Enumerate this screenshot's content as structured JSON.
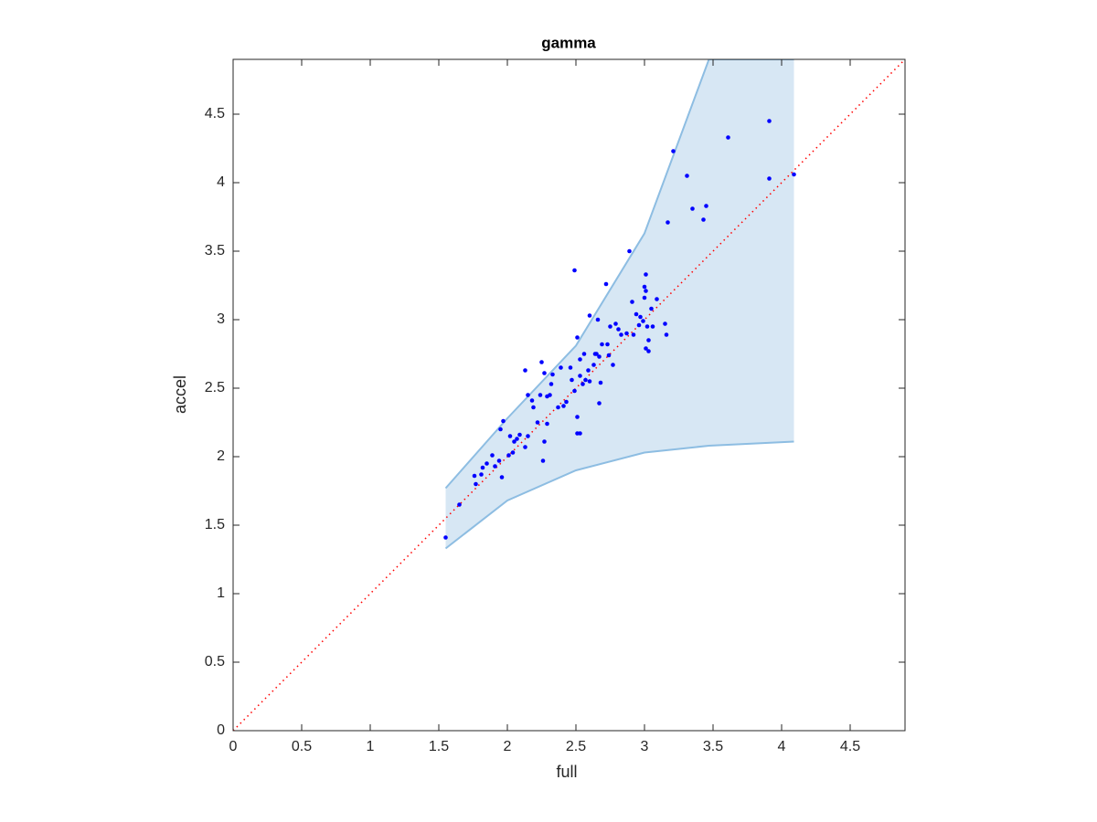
{
  "chart_data": {
    "type": "scatter",
    "title": "gamma",
    "xlabel": "full",
    "ylabel": "accel",
    "xlim": [
      0,
      4.9
    ],
    "ylim": [
      0,
      4.9
    ],
    "xticks": [
      0,
      0.5,
      1,
      1.5,
      2,
      2.5,
      3,
      3.5,
      4,
      4.5
    ],
    "yticks": [
      0,
      0.5,
      1,
      1.5,
      2,
      2.5,
      3,
      3.5,
      4,
      4.5
    ],
    "band": {
      "x": [
        1.55,
        2.0,
        2.5,
        3.0,
        3.47,
        4.09
      ],
      "upper": [
        1.77,
        2.28,
        2.81,
        3.63,
        4.9,
        4.9
      ],
      "lower": [
        1.33,
        1.68,
        1.9,
        2.03,
        2.08,
        2.11
      ],
      "color": "#d7e7f4",
      "edge_color": "#8dbde2"
    },
    "reference_line": {
      "x": [
        0,
        4.9
      ],
      "y": [
        0,
        4.9
      ],
      "color": "#ff0000"
    },
    "points": {
      "color": "#0000ff",
      "x": [
        1.55,
        1.65,
        1.76,
        1.77,
        1.81,
        1.82,
        1.85,
        1.89,
        1.91,
        1.94,
        1.96,
        1.95,
        1.97,
        2.01,
        2.02,
        2.04,
        2.05,
        2.07,
        2.09,
        2.13,
        2.15,
        2.13,
        2.15,
        2.18,
        2.19,
        2.22,
        2.24,
        2.25,
        2.27,
        2.27,
        2.26,
        2.29,
        2.29,
        2.31,
        2.32,
        2.33,
        2.37,
        2.39,
        2.41,
        2.43,
        2.46,
        2.47,
        2.49,
        2.49,
        2.51,
        2.51,
        2.51,
        2.53,
        2.53,
        2.55,
        2.53,
        2.56,
        2.57,
        2.59,
        2.6,
        2.6,
        2.63,
        2.64,
        2.65,
        2.66,
        2.67,
        2.67,
        2.68,
        2.69,
        2.72,
        2.73,
        2.74,
        2.75,
        2.77,
        2.79,
        2.81,
        2.83,
        2.87,
        2.89,
        2.91,
        2.92,
        2.94,
        2.96,
        2.97,
        2.99,
        3.0,
        3.0,
        3.01,
        3.01,
        3.01,
        3.02,
        3.03,
        3.03,
        3.05,
        3.06,
        3.09,
        3.15,
        3.16,
        3.17,
        3.21,
        3.31,
        3.35,
        3.43,
        3.45,
        3.61,
        3.91,
        3.91,
        4.09
      ],
      "y": [
        1.41,
        1.65,
        1.86,
        1.8,
        1.87,
        1.92,
        1.95,
        2.01,
        1.93,
        1.97,
        1.85,
        2.2,
        2.26,
        2.01,
        2.15,
        2.03,
        2.11,
        2.13,
        2.16,
        2.07,
        2.15,
        2.63,
        2.45,
        2.41,
        2.36,
        2.25,
        2.45,
        2.69,
        2.61,
        2.11,
        1.97,
        2.44,
        2.24,
        2.45,
        2.53,
        2.6,
        2.36,
        2.65,
        2.37,
        2.4,
        2.65,
        2.56,
        3.36,
        2.48,
        2.17,
        2.29,
        2.87,
        2.59,
        2.71,
        2.53,
        2.17,
        2.75,
        2.56,
        2.63,
        2.55,
        3.03,
        2.67,
        2.75,
        2.75,
        3.0,
        2.73,
        2.39,
        2.54,
        2.82,
        3.26,
        2.82,
        2.74,
        2.95,
        2.67,
        2.97,
        2.93,
        2.89,
        2.9,
        3.5,
        3.13,
        2.89,
        3.04,
        2.96,
        3.02,
        2.99,
        3.16,
        3.24,
        3.21,
        3.33,
        2.79,
        2.95,
        2.77,
        2.85,
        3.08,
        2.95,
        3.15,
        2.97,
        2.89,
        3.71,
        4.23,
        4.05,
        3.81,
        3.73,
        3.83,
        4.33,
        4.45,
        4.03,
        4.06
      ]
    }
  }
}
